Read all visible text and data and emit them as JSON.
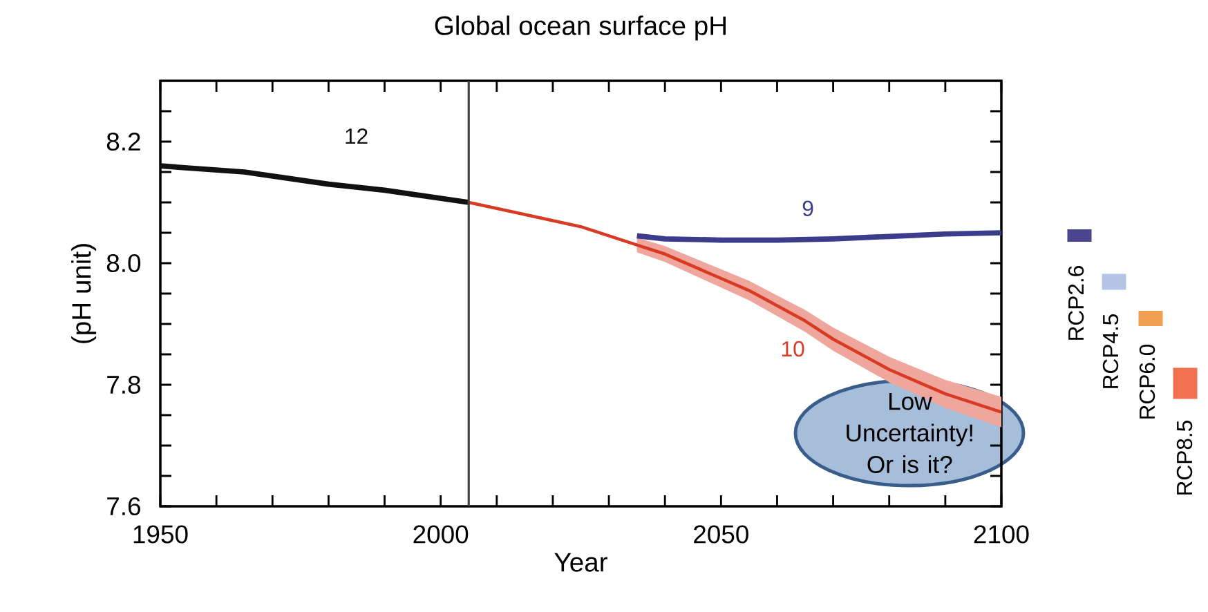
{
  "chart_data": [
    {
      "type": "line",
      "title": "Global ocean surface pH",
      "xlabel": "Year",
      "ylabel": "(pH unit)",
      "xlim": [
        1950,
        2100
      ],
      "ylim": [
        7.6,
        8.3
      ],
      "xticks": [
        1950,
        {
          "value": 1960,
          "label": null
        },
        {
          "value": 1970,
          "label": null
        },
        {
          "value": 1980,
          "label": null
        },
        {
          "value": 1990,
          "label": null
        },
        2000,
        {
          "value": 2010,
          "label": null
        },
        {
          "value": 2020,
          "label": null
        },
        {
          "value": 2030,
          "label": null
        },
        {
          "value": 2040,
          "label": null
        },
        2050,
        {
          "value": 2060,
          "label": null
        },
        {
          "value": 2070,
          "label": null
        },
        {
          "value": 2080,
          "label": null
        },
        {
          "value": 2090,
          "label": null
        },
        2100
      ],
      "yticks": [
        7.6,
        {
          "value": 7.65,
          "label": null
        },
        {
          "value": 7.7,
          "label": null
        },
        {
          "value": 7.75,
          "label": null
        },
        7.8,
        {
          "value": 7.85,
          "label": null
        },
        {
          "value": 7.9,
          "label": null
        },
        {
          "value": 7.95,
          "label": null
        },
        {
          "value": 8,
          "label": "8.0"
        },
        {
          "value": 8.05,
          "label": null
        },
        {
          "value": 8.1,
          "label": null
        },
        {
          "value": 8.15,
          "label": null
        },
        8.2,
        {
          "value": 8.25,
          "label": null
        }
      ],
      "series": [
        {
          "color": "#111111",
          "x": [
            1950,
            1965,
            1980,
            1990,
            2005
          ],
          "values": [
            8.16,
            8.15,
            8.13,
            8.12,
            8.1
          ]
        },
        {
          "color": "#3c3c8c",
          "x": [
            2035,
            2040,
            2050,
            2060,
            2070,
            2080,
            2090,
            2100
          ],
          "values": [
            8.045,
            8.04,
            8.038,
            8.038,
            8.04,
            8.044,
            8.048,
            8.05
          ]
        },
        {
          "color": "#d93a24",
          "x": [
            2005,
            2010,
            2015,
            2020,
            2025,
            2030,
            2035,
            2040,
            2045,
            2050,
            2055,
            2060,
            2065,
            2070,
            2075,
            2080,
            2085,
            2090,
            2095,
            2100
          ],
          "values": [
            8.1,
            8.09,
            8.08,
            8.07,
            8.06,
            8.045,
            8.03,
            8.015,
            7.995,
            7.975,
            7.955,
            7.93,
            7.905,
            7.875,
            7.85,
            7.825,
            7.805,
            7.785,
            7.77,
            7.755
          ],
          "upper": [
            null,
            null,
            null,
            null,
            null,
            null,
            8.042,
            8.028,
            8.009,
            7.99,
            7.971,
            7.947,
            7.923,
            7.894,
            7.87,
            7.846,
            7.827,
            7.808,
            7.794,
            7.78
          ],
          "lower": [
            null,
            null,
            null,
            null,
            null,
            null,
            8.018,
            8.002,
            7.981,
            7.96,
            7.939,
            7.913,
            7.887,
            7.856,
            7.83,
            7.804,
            7.783,
            7.762,
            7.746,
            7.73
          ]
        }
      ],
      "ref_lines": [
        {
          "axis": "x",
          "value": 2005
        }
      ],
      "annotations": [
        "12",
        "9",
        "10",
        "Low Uncertainty! Or is it?"
      ]
    },
    {
      "type": "other",
      "annotations": [
        "RCP2.6",
        "RCP4.5",
        "RCP6.0",
        "RCP8.5"
      ],
      "colors": [
        "#4b4590",
        "#b4c4e4",
        "#f0a050",
        "#f07050"
      ]
    }
  ]
}
